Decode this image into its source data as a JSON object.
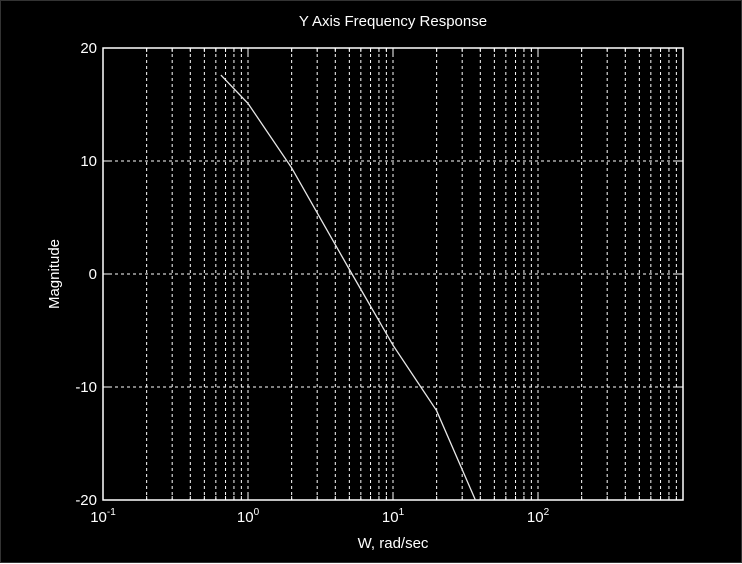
{
  "chart_data": {
    "type": "line",
    "title": "Y Axis Frequency Response",
    "xlabel": "W, rad/sec",
    "ylabel": "Magnitude",
    "xscale": "log",
    "xlim": [
      0.1,
      1000
    ],
    "ylim": [
      -20,
      20
    ],
    "grid": true,
    "grid_style": "dashed",
    "x_ticks": [
      {
        "base": "10",
        "exp": "-1",
        "value": 0.1
      },
      {
        "base": "10",
        "exp": "0",
        "value": 1
      },
      {
        "base": "10",
        "exp": "1",
        "value": 10
      },
      {
        "base": "10",
        "exp": "2",
        "value": 100
      }
    ],
    "y_ticks": [
      {
        "label": "20",
        "value": 20
      },
      {
        "label": "10",
        "value": 10
      },
      {
        "label": "0",
        "value": 0
      },
      {
        "label": "-10",
        "value": -10
      },
      {
        "label": "-20",
        "value": -20
      }
    ],
    "series": [
      {
        "color": "#e8e8e8",
        "x": [
          0.65,
          1,
          2,
          5,
          10,
          20,
          37
        ],
        "y": [
          17.6,
          15.1,
          9.4,
          0.4,
          -6.3,
          -12.1,
          -20
        ]
      }
    ]
  },
  "colors": {
    "background": "#000000",
    "axes": "#ffffff",
    "grid": "#ffffff",
    "line": "#e8e8e8"
  }
}
